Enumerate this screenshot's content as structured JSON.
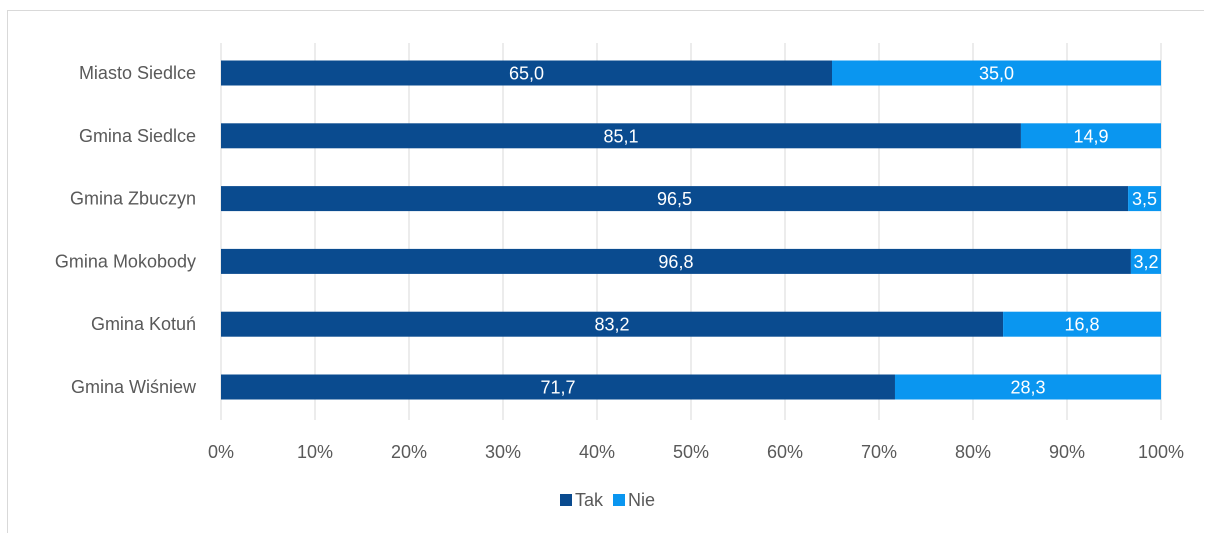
{
  "chart_data": {
    "type": "bar",
    "orientation": "horizontal",
    "stacked": "percent",
    "categories": [
      "Miasto Siedlce",
      "Gmina Siedlce",
      "Gmina Zbuczyn",
      "Gmina Mokobody",
      "Gmina Kotuń",
      "Gmina Wiśniew"
    ],
    "series": [
      {
        "name": "Tak",
        "color": "#0a4b8f",
        "values": [
          65.0,
          85.1,
          96.5,
          96.8,
          83.2,
          71.7
        ],
        "labels": [
          "65,0",
          "85,1",
          "96,5",
          "96,8",
          "83,2",
          "71,7"
        ]
      },
      {
        "name": "Nie",
        "color": "#0a96f0",
        "values": [
          35.0,
          14.9,
          3.5,
          3.2,
          16.8,
          28.3
        ],
        "labels": [
          "35,0",
          "14,9",
          "3,5",
          "3,2",
          "16,8",
          "28,3"
        ]
      }
    ],
    "x_ticks": [
      "0%",
      "10%",
      "20%",
      "30%",
      "40%",
      "50%",
      "60%",
      "70%",
      "80%",
      "90%",
      "100%"
    ],
    "xlim": [
      0,
      100
    ],
    "grid": true,
    "legend_position": "bottom",
    "title": "",
    "xlabel": "",
    "ylabel": ""
  }
}
